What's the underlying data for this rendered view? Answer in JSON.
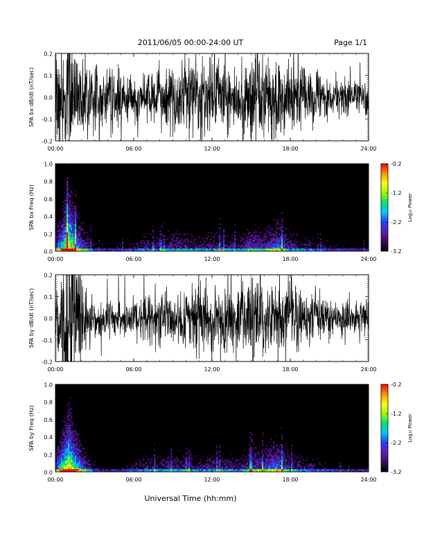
{
  "header": {
    "title": "2011/06/05  00:00-24:00 UT",
    "page_label": "Page 1/1"
  },
  "footer": {
    "xlabel": "Universal Time (hh:mm)"
  },
  "colors": {
    "background": "#ffffff",
    "trace": "#000000",
    "spectrogram_background": "#000000",
    "colormap": [
      "#000000",
      "#3b0a5a",
      "#5a1fb0",
      "#2040ff",
      "#00c8ff",
      "#00e070",
      "#a0ff00",
      "#ffff00",
      "#ff9000",
      "#ff0000"
    ]
  },
  "chart_data": [
    {
      "type": "line",
      "ylabel": "SPA bx dB/dt (nT/sec)",
      "x_ticks": [
        "00:00",
        "06:00",
        "12:00",
        "18:00",
        "24:00"
      ],
      "y_ticks": [
        "0.2",
        "0.1",
        "0.0",
        "-0.1",
        "-0.2"
      ],
      "xlim": [
        0,
        24
      ],
      "ylim": [
        -0.2,
        0.2
      ],
      "amplitude_by_hour": [
        0.25,
        0.3,
        0.18,
        0.14,
        0.12,
        0.12,
        0.11,
        0.11,
        0.13,
        0.16,
        0.17,
        0.16,
        0.17,
        0.15,
        0.14,
        0.2,
        0.18,
        0.18,
        0.15,
        0.14,
        0.12,
        0.09,
        0.08,
        0.07
      ]
    },
    {
      "type": "heatmap",
      "ylabel": "SPA bx Freq (Hz)",
      "x_ticks": [
        "00:00",
        "06:00",
        "12:00",
        "18:00",
        "24:00"
      ],
      "y_ticks": [
        "1.0",
        "0.8",
        "0.6",
        "0.4",
        "0.2",
        "0.0"
      ],
      "xlim": [
        0,
        24
      ],
      "ylim": [
        0,
        1.0
      ],
      "colorbar": {
        "label": "Log₁₀ Power",
        "ticks": [
          "-0.2",
          "-1.2",
          "-2.2",
          "-3.2"
        ],
        "range": [
          -3.2,
          -0.2
        ]
      },
      "activity_by_hour": [
        0.45,
        0.95,
        0.5,
        0.2,
        0.15,
        0.18,
        0.25,
        0.3,
        0.3,
        0.35,
        0.35,
        0.3,
        0.35,
        0.35,
        0.3,
        0.45,
        0.4,
        0.55,
        0.35,
        0.3,
        0.25,
        0.2,
        0.18,
        0.15
      ]
    },
    {
      "type": "line",
      "ylabel": "SPA by dB/dt (nT/sec)",
      "x_ticks": [
        "00:00",
        "06:00",
        "12:00",
        "18:00",
        "24:00"
      ],
      "y_ticks": [
        "0.2",
        "0.1",
        "0.0",
        "-0.1",
        "-0.2"
      ],
      "xlim": [
        0,
        24
      ],
      "ylim": [
        -0.2,
        0.2
      ],
      "amplitude_by_hour": [
        0.22,
        0.35,
        0.2,
        0.09,
        0.08,
        0.08,
        0.09,
        0.1,
        0.11,
        0.13,
        0.15,
        0.16,
        0.17,
        0.16,
        0.14,
        0.19,
        0.17,
        0.16,
        0.14,
        0.12,
        0.1,
        0.09,
        0.08,
        0.07
      ]
    },
    {
      "type": "heatmap",
      "ylabel": "SPA by Freq (Hz)",
      "x_ticks": [
        "00:00",
        "06:00",
        "12:00",
        "18:00",
        "24:00"
      ],
      "y_ticks": [
        "1.0",
        "0.8",
        "0.6",
        "0.4",
        "0.2",
        "0.0"
      ],
      "xlim": [
        0,
        24
      ],
      "ylim": [
        0,
        1.0
      ],
      "colorbar": {
        "label": "Log₁₀ Power",
        "ticks": [
          "-0.2",
          "-1.2",
          "-2.2",
          "-3.2"
        ],
        "range": [
          -3.2,
          -0.2
        ]
      },
      "activity_by_hour": [
        0.5,
        0.95,
        0.55,
        0.22,
        0.15,
        0.18,
        0.25,
        0.3,
        0.3,
        0.35,
        0.35,
        0.3,
        0.35,
        0.35,
        0.3,
        0.45,
        0.45,
        0.6,
        0.35,
        0.3,
        0.25,
        0.2,
        0.18,
        0.15
      ]
    }
  ]
}
